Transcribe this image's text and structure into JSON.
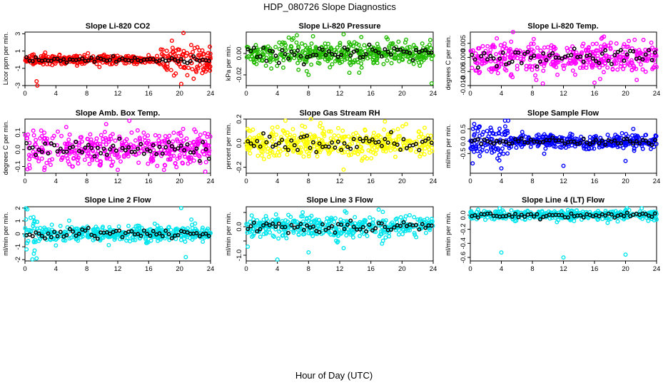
{
  "figure": {
    "title": "HDP_080726  Slope Diagnostics",
    "xlabel": "Hour of Day (UTC)"
  },
  "chart_data": [
    {
      "type": "scatter",
      "title": "Slope Li-820 CO2",
      "ylabel": "Licor ppm per min.",
      "color": "#ff0000",
      "xlim": [
        0,
        24
      ],
      "xticks": [
        0,
        4,
        8,
        12,
        16,
        20,
        24
      ],
      "ylim": [
        -3,
        3.2
      ],
      "yticks": [
        -3,
        -1,
        1,
        3
      ],
      "yticklabels": [
        "-3",
        "-1",
        "1",
        "3"
      ],
      "spread": 0.25,
      "outliers": [
        [
          1.5,
          -2.5
        ],
        [
          1.6,
          -3.0
        ],
        [
          19.0,
          2.2
        ],
        [
          19.5,
          -1.6
        ],
        [
          20.5,
          3.1
        ],
        [
          21.0,
          -1.8
        ],
        [
          21.5,
          1.7
        ],
        [
          22.4,
          -1.0
        ],
        [
          19.8,
          1.2
        ]
      ],
      "wide_range": [
        17.5,
        24
      ],
      "wide_spread": 0.8
    },
    {
      "type": "scatter",
      "title": "Slope Li-820 Pressure",
      "ylabel": "kPa per min.",
      "color": "#22bb00",
      "xlim": [
        0,
        24
      ],
      "xticks": [
        0,
        4,
        8,
        12,
        16,
        20,
        24
      ],
      "ylim": [
        -0.03,
        0.02
      ],
      "yticks": [
        -0.02,
        0.0
      ],
      "yticklabels": [
        "-0.02",
        "0.00"
      ],
      "spread": 0.006,
      "outliers": [
        [
          6.5,
          0.017
        ],
        [
          12.5,
          0.018
        ],
        [
          8.0,
          -0.02
        ],
        [
          23.8,
          -0.028
        ],
        [
          14.5,
          -0.018
        ],
        [
          18.0,
          0.015
        ]
      ],
      "wide_range": null,
      "wide_spread": 0
    },
    {
      "type": "scatter",
      "title": "Slope Li-820 Temp.",
      "ylabel": "degrees C per min.",
      "color": "#ff00ff",
      "xlim": [
        0,
        24
      ],
      "xticks": [
        0,
        4,
        8,
        12,
        16,
        20,
        24
      ],
      "ylim": [
        -0.01,
        0.009
      ],
      "yticks": [
        -0.01,
        -0.005,
        0.0,
        0.005
      ],
      "yticklabels": [
        "-0.010",
        "-0.005",
        "0.000",
        "0.005"
      ],
      "spread": 0.0028,
      "outliers": [
        [
          5.5,
          0.009
        ],
        [
          8.5,
          -0.008
        ],
        [
          16.0,
          -0.009
        ],
        [
          17.0,
          0.007
        ]
      ],
      "wide_range": null,
      "wide_spread": 0
    },
    {
      "type": "scatter",
      "title": "Slope Amb. Box Temp.",
      "ylabel": "degrees C per min.",
      "color": "#ff00ff",
      "xlim": [
        0,
        24
      ],
      "xticks": [
        0,
        4,
        8,
        12,
        16,
        20,
        24
      ],
      "ylim": [
        -0.14,
        0.18
      ],
      "yticks": [
        -0.1,
        0.0,
        0.1
      ],
      "yticklabels": [
        "-0.1",
        "0.0",
        "0.1"
      ],
      "spread": 0.05,
      "outliers": [
        [
          10.5,
          0.15
        ],
        [
          13.5,
          0.17
        ],
        [
          12.0,
          -0.12
        ],
        [
          2.5,
          -0.12
        ]
      ],
      "wide_range": null,
      "wide_spread": 0
    },
    {
      "type": "scatter",
      "title": "Slope Gas Stream RH",
      "ylabel": "percent per min.",
      "color": "#ffff00",
      "xlim": [
        0,
        24
      ],
      "xticks": [
        0,
        4,
        8,
        12,
        16,
        20,
        24
      ],
      "ylim": [
        -0.25,
        0.2
      ],
      "yticks": [
        -0.2,
        0.0,
        0.2
      ],
      "yticklabels": [
        "-0.2",
        "0.0",
        "0.2"
      ],
      "spread": 0.06,
      "outliers": [
        [
          12.5,
          -0.22
        ],
        [
          17.8,
          0.18
        ],
        [
          8.3,
          0.2
        ]
      ],
      "wide_range": null,
      "wide_spread": 0
    },
    {
      "type": "scatter",
      "title": "Slope Sample Flow",
      "ylabel": "ml/min per min.",
      "color": "#0000ff",
      "xlim": [
        0,
        24
      ],
      "xticks": [
        0,
        4,
        8,
        12,
        16,
        20,
        24
      ],
      "ylim": [
        -1.3,
        0.9
      ],
      "yticks": [
        -0.5,
        0.0,
        0.5
      ],
      "yticklabels": [
        "-0.5",
        "0.0",
        "0.5"
      ],
      "spread": 0.14,
      "outliers": [
        [
          0.5,
          0.7
        ],
        [
          1.2,
          0.6
        ],
        [
          0.3,
          -0.9
        ],
        [
          4.0,
          -1.1
        ],
        [
          3.5,
          -0.7
        ],
        [
          4.5,
          0.6
        ],
        [
          12.0,
          -1.0
        ],
        [
          20.0,
          -0.8
        ],
        [
          21.0,
          0.5
        ]
      ],
      "wide_range": [
        0,
        5
      ],
      "wide_spread": 0.35
    },
    {
      "type": "scatter",
      "title": "Slope Line 2 Flow",
      "ylabel": "ml/min per min.",
      "color": "#00e5ee",
      "xlim": [
        0,
        24
      ],
      "xticks": [
        0,
        4,
        8,
        12,
        16,
        20,
        24
      ],
      "ylim": [
        -2.1,
        2.1
      ],
      "yticks": [
        -2,
        -1,
        0,
        1,
        2
      ],
      "yticklabels": [
        "-2",
        "-1",
        "0",
        "1",
        "2"
      ],
      "spread": 0.28,
      "outliers": [
        [
          0.3,
          1.9
        ],
        [
          0.2,
          -1.2
        ],
        [
          1.5,
          -1.9
        ],
        [
          20.2,
          2.0
        ],
        [
          20.8,
          -1.8
        ],
        [
          4.0,
          -0.9
        ],
        [
          22.0,
          0.8
        ]
      ],
      "wide_range": [
        0,
        2
      ],
      "wide_spread": 0.8
    },
    {
      "type": "scatter",
      "title": "Slope Line 3 Flow",
      "ylabel": "ml/min per min.",
      "color": "#00e5ee",
      "xlim": [
        0,
        24
      ],
      "xticks": [
        0,
        4,
        8,
        12,
        16,
        20,
        24
      ],
      "ylim": [
        -1.2,
        0.7
      ],
      "yticks": [
        -1.0,
        -0.5,
        0.0,
        0.5
      ],
      "yticklabels": [
        "-1.0",
        "",
        "0.0",
        ""
      ],
      "spread": 0.18,
      "outliers": [
        [
          4.0,
          -1.15
        ],
        [
          0.2,
          -0.7
        ],
        [
          8.0,
          -0.9
        ],
        [
          12.5,
          -0.75
        ],
        [
          17.0,
          0.6
        ]
      ],
      "wide_range": null,
      "wide_spread": 0
    },
    {
      "type": "scatter",
      "title": "Slope Line 4 (LT) Flow",
      "ylabel": "ml/min per min.",
      "color": "#00e5ee",
      "xlim": [
        0,
        24
      ],
      "xticks": [
        0,
        4,
        8,
        12,
        16,
        20,
        24
      ],
      "ylim": [
        -0.65,
        0.12
      ],
      "yticks": [
        -0.6,
        -0.4,
        -0.2,
        0.0
      ],
      "yticklabels": [
        "-0.6",
        "-0.4",
        "-0.2",
        "0.0"
      ],
      "spread": 0.035,
      "outliers": [
        [
          4.0,
          -0.53
        ],
        [
          12.0,
          -0.6
        ],
        [
          20.0,
          -0.56
        ],
        [
          1.0,
          0.08
        ]
      ],
      "wide_range": null,
      "wide_spread": 0
    }
  ]
}
